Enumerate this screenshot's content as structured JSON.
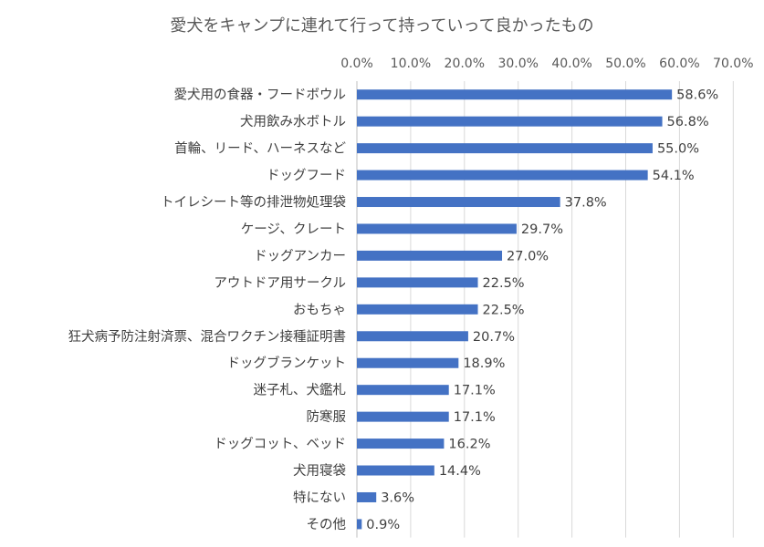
{
  "chart_data": {
    "type": "bar",
    "orientation": "horizontal",
    "title": "愛犬をキャンプに連れて行って持っていって良かったもの",
    "categories": [
      "愛犬用の食器・フードボウル",
      "犬用飲み水ボトル",
      "首輪、リード、ハーネスなど",
      "ドッグフード",
      "トイレシート等の排泄物処理袋",
      "ケージ、クレート",
      "ドッグアンカー",
      "アウトドア用サークル",
      "おもちゃ",
      "狂犬病予防注射済票、混合ワクチン接種証明書",
      "ドッグブランケット",
      "迷子札、犬鑑札",
      "防寒服",
      "ドッグコット、ベッド",
      "犬用寝袋",
      "特にない",
      "その他"
    ],
    "values": [
      58.6,
      56.8,
      55.0,
      54.1,
      37.8,
      29.7,
      27.0,
      22.5,
      22.5,
      20.7,
      18.9,
      17.1,
      17.1,
      16.2,
      14.4,
      3.6,
      0.9
    ],
    "value_labels": [
      "58.6%",
      "56.8%",
      "55.0%",
      "54.1%",
      "37.8%",
      "29.7%",
      "27.0%",
      "22.5%",
      "22.5%",
      "20.7%",
      "18.9%",
      "17.1%",
      "17.1%",
      "16.2%",
      "14.4%",
      "3.6%",
      "0.9%"
    ],
    "xlim": [
      0,
      70
    ],
    "x_ticks": [
      "0.0%",
      "10.0%",
      "20.0%",
      "30.0%",
      "40.0%",
      "50.0%",
      "60.0%",
      "70.0%"
    ],
    "x_axis_position": "top",
    "grid": true,
    "legend": "none",
    "bar_color": "#4472C4",
    "grid_color": "#D9D9D9"
  }
}
